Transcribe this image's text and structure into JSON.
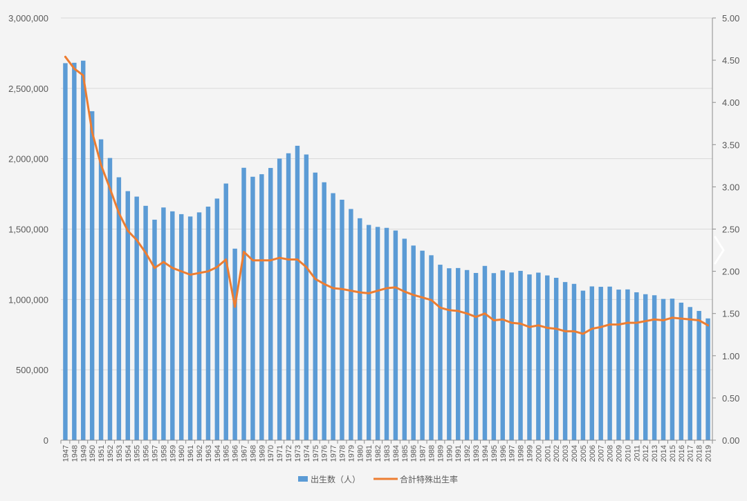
{
  "chart_data": {
    "type": "bar",
    "categories": [
      "1947",
      "1948",
      "1949",
      "1950",
      "1951",
      "1952",
      "1953",
      "1954",
      "1955",
      "1956",
      "1957",
      "1958",
      "1959",
      "1960",
      "1961",
      "1962",
      "1963",
      "1964",
      "1965",
      "1966",
      "1967",
      "1968",
      "1969",
      "1970",
      "1971",
      "1972",
      "1973",
      "1974",
      "1975",
      "1976",
      "1977",
      "1978",
      "1979",
      "1980",
      "1981",
      "1982",
      "1983",
      "1984",
      "1985",
      "1986",
      "1987",
      "1988",
      "1989",
      "1990",
      "1991",
      "1992",
      "1993",
      "1994",
      "1995",
      "1996",
      "1997",
      "1998",
      "1999",
      "2000",
      "2001",
      "2002",
      "2003",
      "2004",
      "2005",
      "2006",
      "2007",
      "2008",
      "2009",
      "2010",
      "2011",
      "2012",
      "2013",
      "2014",
      "2015",
      "2016",
      "2017",
      "2018",
      "2019"
    ],
    "series": [
      {
        "name": "出生数（人）",
        "kind": "bar",
        "axis": "left",
        "color": "#5b9bd5",
        "values": [
          2678792,
          2681624,
          2696638,
          2337507,
          2137689,
          2005162,
          1868040,
          1769580,
          1730692,
          1665278,
          1566713,
          1653469,
          1626088,
          1606041,
          1589372,
          1618616,
          1659521,
          1716761,
          1823697,
          1360974,
          1935647,
          1871839,
          1889815,
          1934239,
          2000973,
          2038682,
          2091983,
          2029989,
          1901440,
          1832617,
          1755100,
          1708643,
          1642580,
          1576889,
          1529455,
          1515392,
          1508687,
          1489780,
          1431577,
          1382946,
          1346658,
          1314006,
          1246802,
          1221585,
          1223245,
          1208989,
          1188282,
          1238328,
          1187064,
          1206555,
          1191665,
          1203147,
          1177669,
          1190547,
          1170662,
          1153855,
          1123610,
          1110721,
          1062530,
          1092674,
          1089818,
          1091156,
          1070035,
          1071305,
          1050807,
          1037232,
          1029817,
          1003609,
          1005721,
          977242,
          946146,
          918400,
          865239
        ]
      },
      {
        "name": "合計特殊出生率",
        "kind": "line",
        "axis": "right",
        "color": "#ed7d31",
        "values": [
          4.54,
          4.4,
          4.32,
          3.65,
          3.26,
          2.98,
          2.69,
          2.48,
          2.37,
          2.22,
          2.04,
          2.11,
          2.04,
          2.0,
          1.96,
          1.98,
          2.0,
          2.05,
          2.14,
          1.58,
          2.23,
          2.13,
          2.13,
          2.13,
          2.16,
          2.14,
          2.14,
          2.05,
          1.91,
          1.85,
          1.8,
          1.79,
          1.77,
          1.75,
          1.74,
          1.77,
          1.8,
          1.81,
          1.76,
          1.72,
          1.69,
          1.66,
          1.57,
          1.54,
          1.53,
          1.5,
          1.46,
          1.5,
          1.42,
          1.43,
          1.39,
          1.38,
          1.34,
          1.36,
          1.33,
          1.32,
          1.29,
          1.29,
          1.26,
          1.32,
          1.34,
          1.37,
          1.37,
          1.39,
          1.39,
          1.41,
          1.43,
          1.42,
          1.45,
          1.44,
          1.43,
          1.42,
          1.36
        ]
      }
    ],
    "y_left": {
      "ylim": [
        0,
        3000000
      ],
      "ticks": [
        0,
        500000,
        1000000,
        1500000,
        2000000,
        2500000,
        3000000
      ],
      "tick_labels": [
        "0",
        "500,000",
        "1,000,000",
        "1,500,000",
        "2,000,000",
        "2,500,000",
        "3,000,000"
      ]
    },
    "y_right": {
      "ylim": [
        0,
        5
      ],
      "ticks": [
        0,
        0.5,
        1,
        1.5,
        2,
        2.5,
        3,
        3.5,
        4,
        4.5,
        5
      ],
      "tick_labels": [
        "0.00",
        "0.50",
        "1.00",
        "1.50",
        "2.00",
        "2.50",
        "3.00",
        "3.50",
        "4.00",
        "4.50",
        "5.00"
      ]
    },
    "grid": true,
    "legend_position": "bottom",
    "colors": {
      "background": "#f4f4f4",
      "grid": "#d9d9d9",
      "axis": "#8c8c8c",
      "text": "#595959"
    }
  },
  "ui": {
    "next_arrow_icon": "chevron-right-icon"
  }
}
